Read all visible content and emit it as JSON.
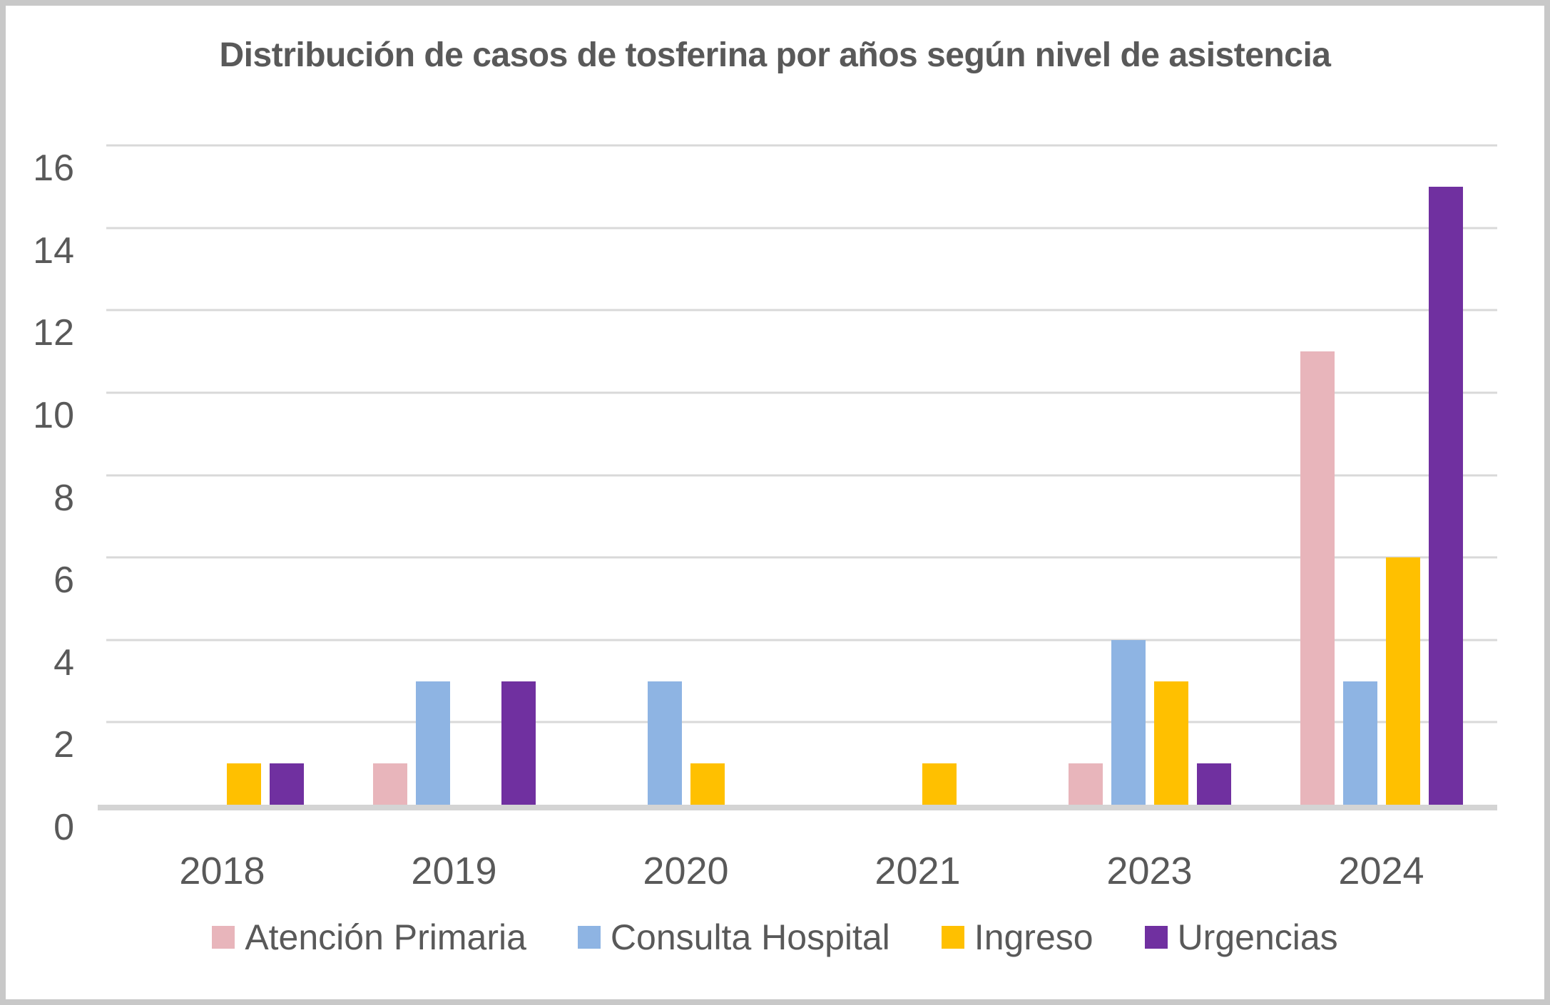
{
  "chart_data": {
    "type": "bar",
    "title": "Distribución de casos de tosferina por años según nivel de asistencia",
    "categories": [
      "2018",
      "2019",
      "2020",
      "2021",
      "2023",
      "2024"
    ],
    "series": [
      {
        "name": "Atención Primaria",
        "color": "#e8b5bb",
        "values": [
          0,
          1,
          0,
          0,
          1,
          11
        ]
      },
      {
        "name": "Consulta Hospital",
        "color": "#8eb4e3",
        "values": [
          0,
          3,
          3,
          0,
          4,
          3
        ]
      },
      {
        "name": "Ingreso",
        "color": "#ffc000",
        "values": [
          1,
          0,
          1,
          1,
          3,
          6
        ]
      },
      {
        "name": "Urgencias",
        "color": "#7030a0",
        "values": [
          1,
          3,
          0,
          0,
          1,
          15
        ]
      }
    ],
    "xlabel": "",
    "ylabel": "",
    "ylim": [
      0,
      16
    ],
    "ytick_step": 2,
    "yticks": [
      0,
      2,
      4,
      6,
      8,
      10,
      12,
      14,
      16
    ],
    "grid": "horizontal",
    "legend_position": "bottom"
  },
  "colors": {
    "text": "#595959",
    "gridline": "#d9d9d9",
    "axis_line": "#d4d4d4",
    "canvas_border": "#c8c8c8",
    "background": "#ffffff"
  }
}
